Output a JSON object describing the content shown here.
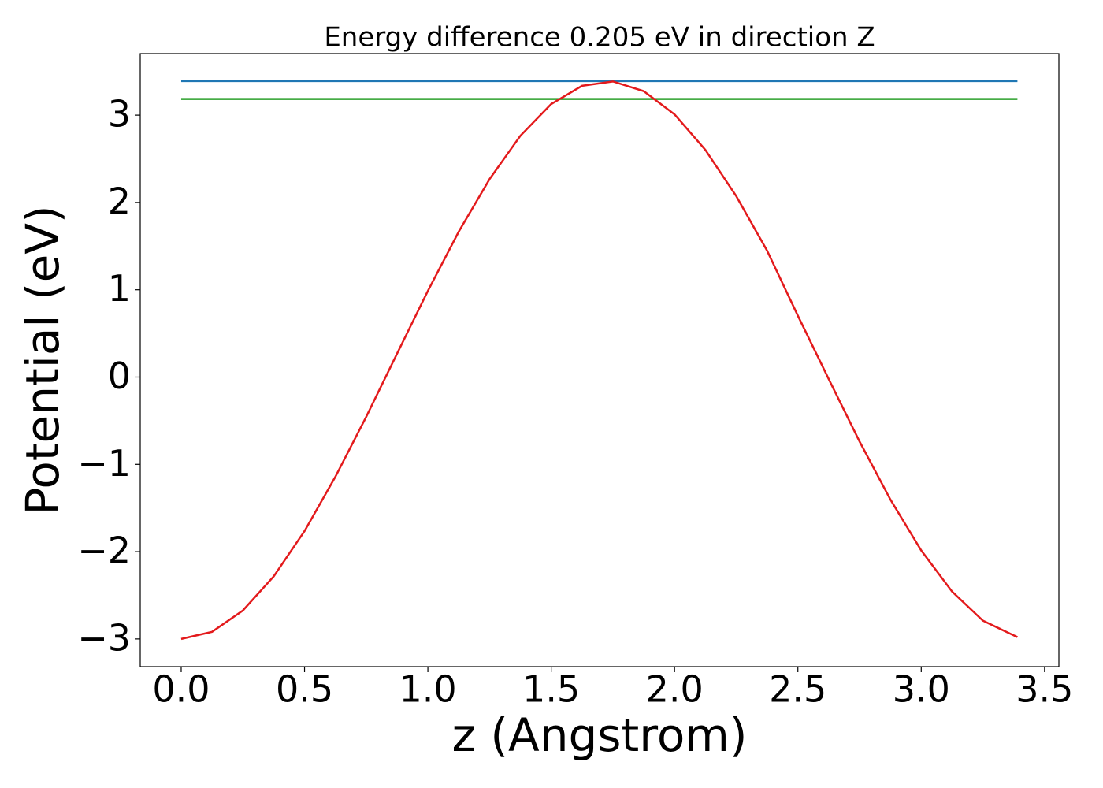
{
  "chart_data": {
    "type": "line",
    "title": "Energy difference 0.205 eV in direction Z",
    "x_label": "z (Angstrom)",
    "y_label": "Potential (eV)",
    "xlim": [
      -0.166,
      3.558
    ],
    "ylim": [
      -3.317,
      3.705
    ],
    "xticks": [
      {
        "value": 0,
        "label": "0.0"
      },
      0.5,
      {
        "value": 1,
        "label": "1.0"
      },
      1.5,
      {
        "value": 2,
        "label": "2.0"
      },
      2.5,
      {
        "value": 3,
        "label": "3.0"
      },
      3.5
    ],
    "yticks": [
      {
        "value": -3,
        "label": "−3"
      },
      {
        "value": -2,
        "label": "−2"
      },
      {
        "value": -1,
        "label": "−1"
      },
      0,
      1,
      2,
      3
    ],
    "series": [
      {
        "color": "#1f77b4",
        "x": [
          0,
          3.39
        ],
        "values": [
          3.39,
          3.39
        ]
      },
      {
        "color": "#2ca02c",
        "x": [
          0,
          3.39
        ],
        "values": [
          3.185,
          3.185
        ]
      },
      {
        "color": "#e31a1c",
        "x": [
          0,
          0.125,
          0.25,
          0.375,
          0.5,
          0.625,
          0.75,
          0.875,
          1.0,
          1.125,
          1.25,
          1.375,
          1.5,
          1.625,
          1.75,
          1.875,
          2.0,
          2.125,
          2.25,
          2.375,
          2.5,
          2.625,
          2.75,
          2.875,
          3.0,
          3.125,
          3.25,
          3.39
        ],
        "values": [
          -3.0,
          -2.918,
          -2.674,
          -2.283,
          -1.764,
          -1.142,
          -0.455,
          0.268,
          0.987,
          1.665,
          2.267,
          2.764,
          3.127,
          3.336,
          3.386,
          3.275,
          3.009,
          2.602,
          2.073,
          1.449,
          0.702,
          -0.023,
          -0.738,
          -1.403,
          -1.986,
          -2.457,
          -2.79,
          -2.979
        ]
      }
    ]
  }
}
